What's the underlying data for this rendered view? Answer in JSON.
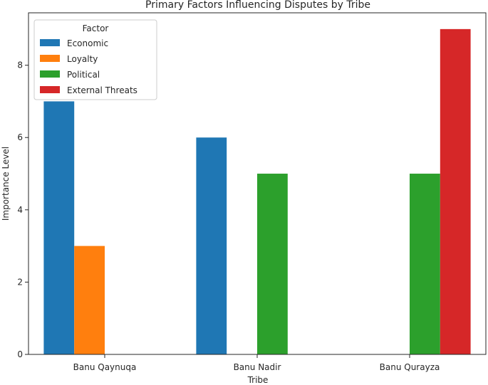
{
  "chart_data": {
    "type": "bar",
    "title": "Primary Factors Influencing Disputes by Tribe",
    "xlabel": "Tribe",
    "ylabel": "Importance Level",
    "categories": [
      "Banu Qaynuqa",
      "Banu Nadir",
      "Banu Qurayza"
    ],
    "ylim": [
      0,
      9.45
    ],
    "yticks": [
      0,
      2,
      4,
      6,
      8
    ],
    "grid": false,
    "legend": {
      "title": "Factor",
      "placement": "top-left"
    },
    "series": [
      {
        "name": "Economic",
        "color": "#1f77b4",
        "values": [
          7,
          6,
          null
        ]
      },
      {
        "name": "Loyalty",
        "color": "#ff7f0e",
        "values": [
          3,
          null,
          null
        ]
      },
      {
        "name": "Political",
        "color": "#2ca02c",
        "values": [
          null,
          5,
          5
        ]
      },
      {
        "name": "External Threats",
        "color": "#d62728",
        "values": [
          null,
          null,
          9
        ]
      }
    ]
  }
}
